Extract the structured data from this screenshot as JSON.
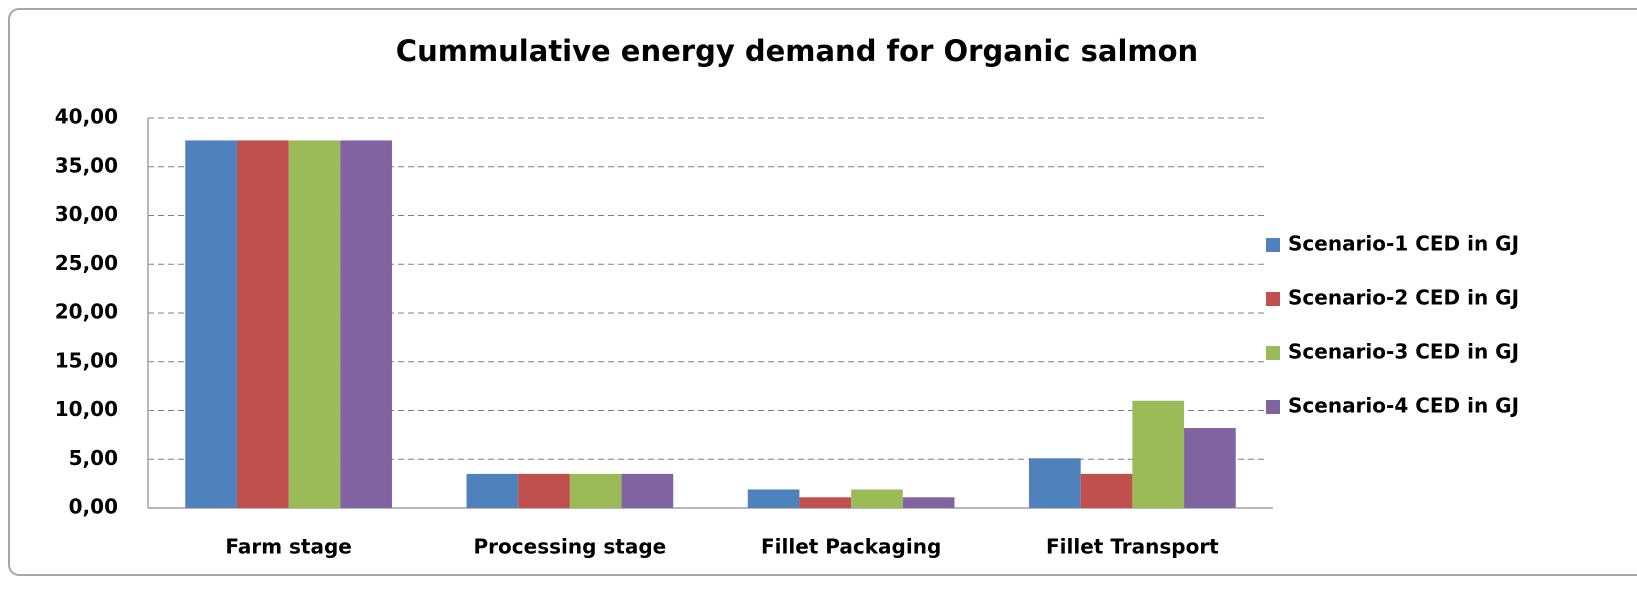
{
  "chart_data": {
    "type": "bar",
    "title": "Cummulative energy demand for Organic salmon",
    "categories": [
      "Farm stage",
      "Processing stage",
      "Fillet Packaging",
      "Fillet Transport"
    ],
    "series": [
      {
        "name": "Scenario-1 CED in GJ",
        "color": "#4f81bd",
        "values": [
          37.7,
          3.5,
          1.9,
          5.1
        ]
      },
      {
        "name": "Scenario-2 CED in GJ",
        "color": "#c0504d",
        "values": [
          37.7,
          3.5,
          1.1,
          3.5
        ]
      },
      {
        "name": "Scenario-3 CED in GJ",
        "color": "#9bbb59",
        "values": [
          37.7,
          3.5,
          1.9,
          11.0
        ]
      },
      {
        "name": "Scenario-4 CED in GJ",
        "color": "#8064a2",
        "values": [
          37.7,
          3.5,
          1.1,
          8.2
        ]
      }
    ],
    "ylim": [
      0,
      40
    ],
    "yticks": [
      {
        "value": 0,
        "label": "0,00"
      },
      {
        "value": 5,
        "label": "5,00"
      },
      {
        "value": 10,
        "label": "10,00"
      },
      {
        "value": 15,
        "label": "15,00"
      },
      {
        "value": 20,
        "label": "20,00"
      },
      {
        "value": 25,
        "label": "25,00"
      },
      {
        "value": 30,
        "label": "30,00"
      },
      {
        "value": 35,
        "label": "35,00"
      },
      {
        "value": 40,
        "label": "40,00"
      }
    ],
    "grid": true,
    "legend": "right"
  }
}
